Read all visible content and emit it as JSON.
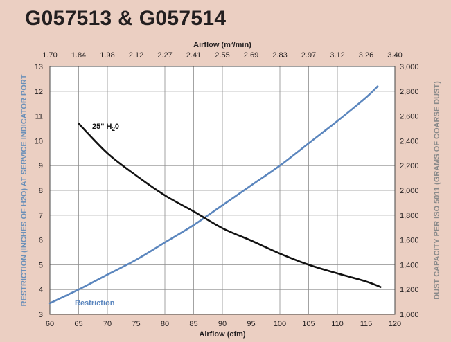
{
  "title": "G057513 & G057514",
  "chart_data": {
    "type": "line",
    "xlabel": "Airflow (cfm)",
    "xlabel_top": "Airflow (m³/min)",
    "ylabel_left": "RESTRICTION (INCHES OF H2O) AT SERVICE INDICATOR PORT",
    "ylabel_right": "DUST CAPACITY PER ISO 5011 (GRAMS OF COARSE DUST)",
    "xlim": [
      60,
      120
    ],
    "ylim_left": [
      3,
      13
    ],
    "ylim_right": [
      1000,
      3000
    ],
    "x_ticks": [
      "60",
      "65",
      "70",
      "75",
      "80",
      "85",
      "90",
      "95",
      "100",
      "105",
      "110",
      "115",
      "120"
    ],
    "x_ticks_top": [
      "1.70",
      "1.84",
      "1.98",
      "2.12",
      "2.27",
      "2.41",
      "2.55",
      "2.69",
      "2.83",
      "2.97",
      "3.12",
      "3.26",
      "3.40"
    ],
    "y_ticks_left": [
      "3",
      "4",
      "5",
      "6",
      "7",
      "8",
      "9",
      "10",
      "11",
      "12",
      "13"
    ],
    "y_ticks_right": [
      "1,000",
      "1,200",
      "1,400",
      "1,600",
      "1,800",
      "2,000",
      "2,200",
      "2,400",
      "2,600",
      "2,800",
      "3,000"
    ],
    "grid": true,
    "series": [
      {
        "name": "Restriction",
        "axis": "left",
        "color": "#5b86be",
        "x": [
          60,
          65,
          70,
          75,
          80,
          85,
          90,
          95,
          100,
          105,
          110,
          115,
          117
        ],
        "y": [
          3.45,
          4.0,
          4.6,
          5.2,
          5.9,
          6.6,
          7.4,
          8.2,
          9.0,
          9.9,
          10.8,
          11.75,
          12.2
        ]
      },
      {
        "name": "25\" H20",
        "axis": "right",
        "color": "#111111",
        "x": [
          65,
          70,
          75,
          80,
          85,
          90,
          95,
          100,
          105,
          110,
          115,
          117.5
        ],
        "y": [
          2540,
          2300,
          2120,
          1960,
          1830,
          1695,
          1595,
          1490,
          1400,
          1330,
          1265,
          1220
        ]
      }
    ],
    "annotations": {
      "black_label_main": "25\" H",
      "black_label_sub": "2",
      "black_label_tail": "0",
      "blue_label": "Restriction"
    }
  }
}
